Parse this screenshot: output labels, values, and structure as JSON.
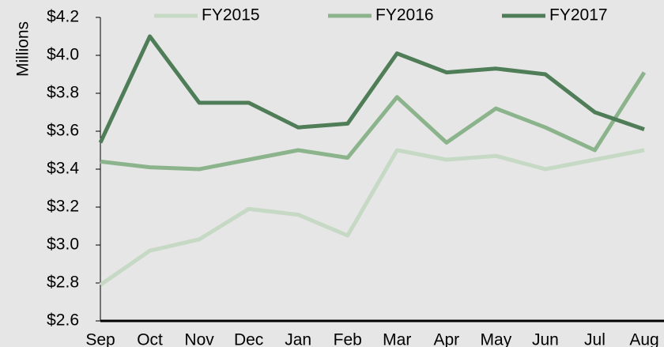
{
  "chart_data": {
    "type": "line",
    "y_label": "Millions",
    "categories": [
      "Sep",
      "Oct",
      "Nov",
      "Dec",
      "Jan",
      "Feb",
      "Mar",
      "Apr",
      "May",
      "Jun",
      "Jul",
      "Aug"
    ],
    "series": [
      {
        "name": "FY2015",
        "color": "#c5d9c4",
        "values": [
          2.79,
          2.97,
          3.03,
          3.19,
          3.16,
          3.05,
          3.5,
          3.45,
          3.47,
          3.4,
          3.45,
          3.5
        ]
      },
      {
        "name": "FY2016",
        "color": "#8cb48c",
        "values": [
          3.44,
          3.41,
          3.4,
          3.45,
          3.5,
          3.46,
          3.78,
          3.54,
          3.72,
          3.62,
          3.5,
          3.91
        ]
      },
      {
        "name": "FY2017",
        "color": "#4f7d57",
        "values": [
          3.54,
          4.1,
          3.75,
          3.75,
          3.62,
          3.64,
          4.01,
          3.91,
          3.93,
          3.9,
          3.7,
          3.61
        ]
      }
    ],
    "ylim": [
      2.6,
      4.2
    ],
    "yticks": [
      {
        "value": 2.6,
        "label": "$2.6"
      },
      {
        "value": 2.8,
        "label": "$2.8"
      },
      {
        "value": 3.0,
        "label": "$3.0"
      },
      {
        "value": 3.2,
        "label": "$3.2"
      },
      {
        "value": 3.4,
        "label": "$3.4"
      },
      {
        "value": 3.6,
        "label": "$3.6"
      },
      {
        "value": 3.8,
        "label": "$3.8"
      },
      {
        "value": 4.0,
        "label": "$4.0"
      },
      {
        "value": 4.2,
        "label": "$4.2"
      }
    ],
    "grid": false,
    "legend": "top"
  }
}
